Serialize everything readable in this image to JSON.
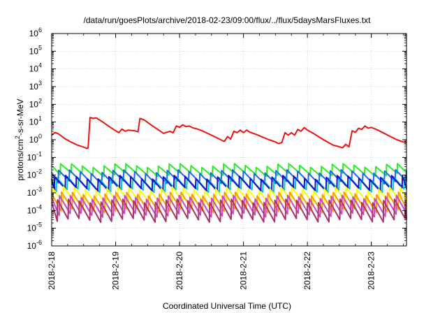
{
  "chart_data": {
    "type": "line",
    "title": "/data/run/goesPlots/archive/2018-02-23/09:00/flux/../flux/5daysMarsFluxes.txt",
    "xlabel": "Coordinated Universal Time (UTC)",
    "ylabel_main": "protons/cm",
    "ylabel_sup": "2",
    "ylabel_tail": "-s-sr-MeV",
    "yscale": "log",
    "ylim": [
      1e-06,
      1000000.0
    ],
    "xlim_days": [
      0,
      5.55
    ],
    "y_ticks": [
      {
        "exp": -6,
        "base": "10",
        "sup": "-6"
      },
      {
        "exp": -5,
        "base": "10",
        "sup": "-5"
      },
      {
        "exp": -4,
        "base": "10",
        "sup": "-4"
      },
      {
        "exp": -3,
        "base": "10",
        "sup": "-3"
      },
      {
        "exp": -2,
        "base": "10",
        "sup": "-2"
      },
      {
        "exp": -1,
        "base": "10",
        "sup": "-1"
      },
      {
        "exp": 0,
        "base": "10",
        "sup": "0"
      },
      {
        "exp": 1,
        "base": "10",
        "sup": "1"
      },
      {
        "exp": 2,
        "base": "10",
        "sup": "2"
      },
      {
        "exp": 3,
        "base": "10",
        "sup": "3"
      },
      {
        "exp": 4,
        "base": "10",
        "sup": "4"
      },
      {
        "exp": 5,
        "base": "10",
        "sup": "5"
      },
      {
        "exp": 6,
        "base": "10",
        "sup": "6"
      }
    ],
    "x_ticks": [
      {
        "day": 0,
        "label": "2018-2-18"
      },
      {
        "day": 1,
        "label": "2018-2-19"
      },
      {
        "day": 2,
        "label": "2018-2-20"
      },
      {
        "day": 3,
        "label": "2018-2-21"
      },
      {
        "day": 4,
        "label": "2018-2-22"
      },
      {
        "day": 5,
        "label": "2018-2-23"
      }
    ],
    "grid": true,
    "series": [
      {
        "color": "#ee1111",
        "points": [
          [
            0,
            1.8
          ],
          [
            0.05,
            2.6
          ],
          [
            0.1,
            2.2
          ],
          [
            0.2,
            1.2
          ],
          [
            0.3,
            0.75
          ],
          [
            0.4,
            0.5
          ],
          [
            0.5,
            0.38
          ],
          [
            0.55,
            0.32
          ],
          [
            0.57,
            0.35
          ],
          [
            0.6,
            18
          ],
          [
            0.65,
            16
          ],
          [
            0.7,
            17
          ],
          [
            0.8,
            10
          ],
          [
            0.9,
            5.5
          ],
          [
            1.0,
            3.2
          ],
          [
            1.05,
            2.5
          ],
          [
            1.1,
            4
          ],
          [
            1.15,
            3
          ],
          [
            1.2,
            3.5
          ],
          [
            1.3,
            3.2
          ],
          [
            1.35,
            2.8
          ],
          [
            1.38,
            16
          ],
          [
            1.45,
            13
          ],
          [
            1.55,
            7
          ],
          [
            1.65,
            4
          ],
          [
            1.75,
            2.3
          ],
          [
            1.85,
            3
          ],
          [
            1.9,
            2.5
          ],
          [
            1.95,
            6
          ],
          [
            2.0,
            5
          ],
          [
            2.05,
            7
          ],
          [
            2.1,
            5.5
          ],
          [
            2.15,
            6
          ],
          [
            2.2,
            4.8
          ],
          [
            2.3,
            3.8
          ],
          [
            2.4,
            2.7
          ],
          [
            2.5,
            1.8
          ],
          [
            2.6,
            1.2
          ],
          [
            2.7,
            0.8
          ],
          [
            2.75,
            1.5
          ],
          [
            2.8,
            1.1
          ],
          [
            2.85,
            3
          ],
          [
            2.9,
            2.5
          ],
          [
            2.95,
            3.5
          ],
          [
            3.0,
            2.5
          ],
          [
            3.05,
            3.5
          ],
          [
            3.1,
            2.7
          ],
          [
            3.2,
            2
          ],
          [
            3.3,
            1.4
          ],
          [
            3.4,
            1.0
          ],
          [
            3.5,
            0.75
          ],
          [
            3.55,
            0.6
          ],
          [
            3.6,
            0.7
          ],
          [
            3.65,
            2.5
          ],
          [
            3.7,
            1.8
          ],
          [
            3.75,
            2.5
          ],
          [
            3.8,
            1.8
          ],
          [
            3.85,
            3.8
          ],
          [
            3.9,
            3
          ],
          [
            3.95,
            4.8
          ],
          [
            4.0,
            3.5
          ],
          [
            4.1,
            2.2
          ],
          [
            4.2,
            1.3
          ],
          [
            4.3,
            0.8
          ],
          [
            4.4,
            0.5
          ],
          [
            4.5,
            0.4
          ],
          [
            4.55,
            0.35
          ],
          [
            4.6,
            0.55
          ],
          [
            4.65,
            0.4
          ],
          [
            4.7,
            3.2
          ],
          [
            4.75,
            2.6
          ],
          [
            4.8,
            4.5
          ],
          [
            4.85,
            3.8
          ],
          [
            4.9,
            6
          ],
          [
            4.95,
            4.5
          ],
          [
            5.0,
            5
          ],
          [
            5.1,
            3.5
          ],
          [
            5.2,
            2.3
          ],
          [
            5.3,
            1.5
          ],
          [
            5.4,
            1.0
          ],
          [
            5.5,
            0.75
          ],
          [
            5.55,
            0.7
          ]
        ]
      },
      {
        "color": "#22ee22",
        "base": 0.02,
        "amp": 1.8
      },
      {
        "color": "#2266ee",
        "base": 0.008,
        "amp": 2.0
      },
      {
        "color": "#00c8c8",
        "base": 0.003,
        "amp": 2.2
      },
      {
        "color": "#1111cc",
        "base": 0.0035,
        "amp": 2.2
      },
      {
        "color": "#ffff00",
        "base": 0.0007,
        "amp": 2.5
      },
      {
        "color": "#ff9900",
        "base": 0.0003,
        "amp": 3.0
      },
      {
        "color": "#cc44cc",
        "base": 0.00018,
        "amp": 3.2
      },
      {
        "color": "#aa3366",
        "base": 0.0001,
        "amp": 3.5
      }
    ]
  }
}
